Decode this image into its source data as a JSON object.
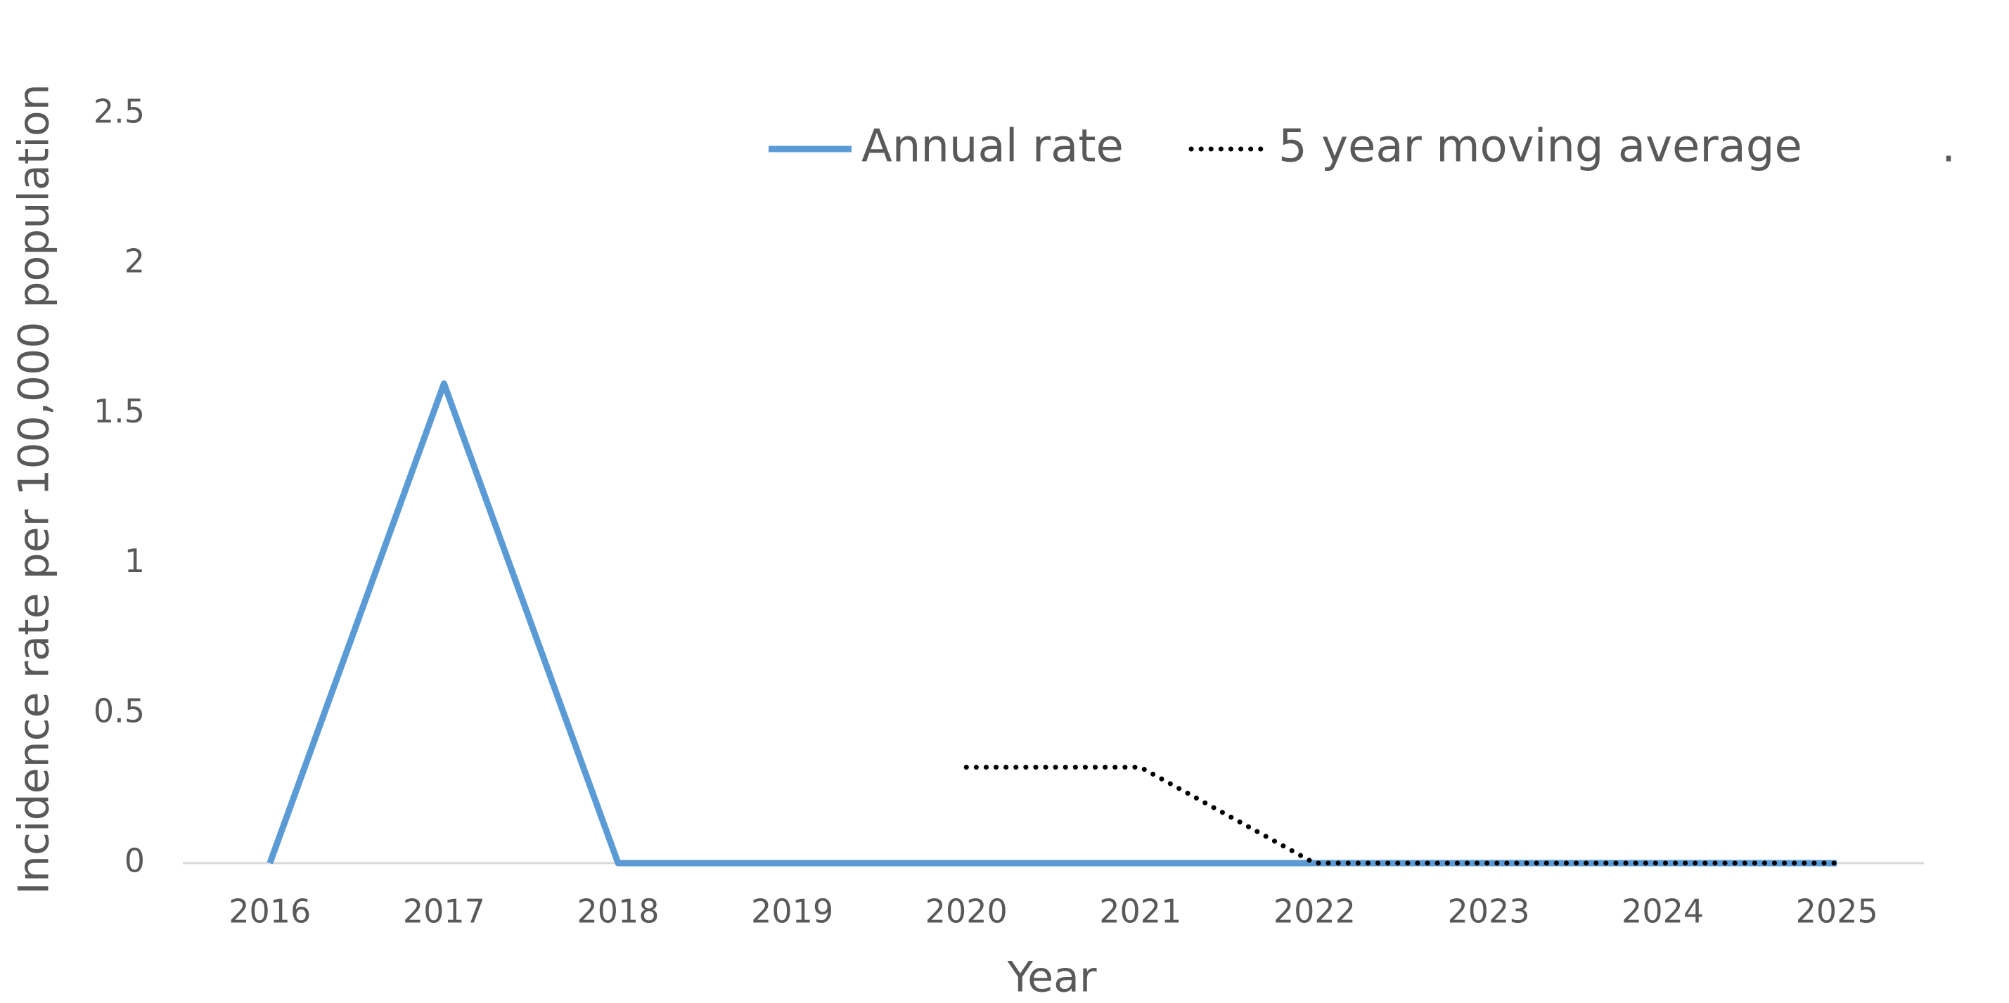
{
  "chart_data": {
    "type": "line",
    "xlabel": "Year",
    "ylabel": "Incidence rate per 100,000 population",
    "categories": [
      "2016",
      "2017",
      "2018",
      "2019",
      "2020",
      "2021",
      "2022",
      "2023",
      "2024",
      "2025"
    ],
    "series": [
      {
        "name": "Annual rate",
        "color": "#5b9bd5",
        "style": "solid",
        "values": [
          0,
          1.6,
          0,
          0,
          0,
          0,
          0,
          0,
          0,
          0
        ]
      },
      {
        "name": "5 year moving average",
        "color": "#000000",
        "style": "dotted",
        "values": [
          null,
          null,
          null,
          null,
          0.32,
          0.32,
          0,
          0,
          0,
          0
        ]
      }
    ],
    "annotations": [
      "."
    ],
    "ylim": [
      0,
      2.5
    ],
    "yticks": [
      0,
      0.5,
      1,
      1.5,
      2,
      2.5
    ],
    "grid": false,
    "legend": "top"
  }
}
